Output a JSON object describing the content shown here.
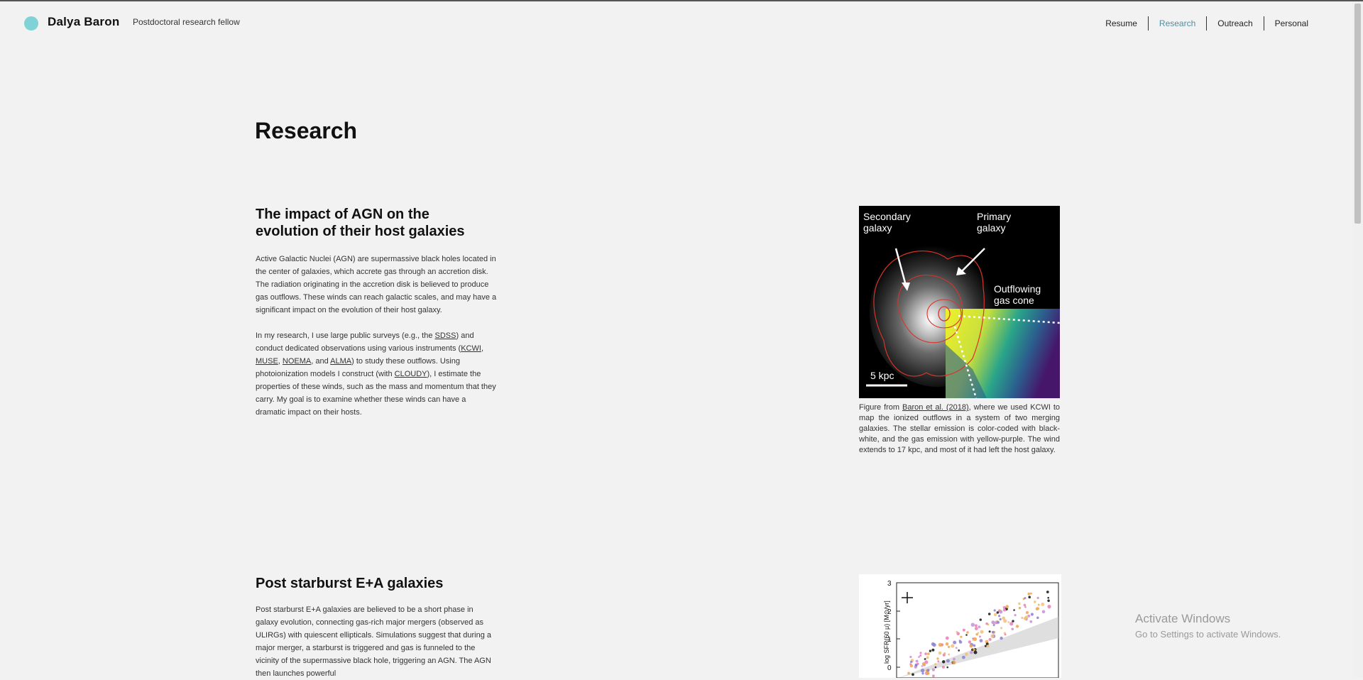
{
  "header": {
    "site_name": "Dalya Baron",
    "tagline": "Postdoctoral research fellow",
    "nav": [
      "Resume",
      "Research",
      "Outreach",
      "Personal"
    ]
  },
  "page": {
    "title": "Research"
  },
  "section1": {
    "title_line1": "The impact of AGN on the",
    "title_line2": "evolution of their host galaxies",
    "p1": "Active Galactic Nuclei (AGN) are supermassive black holes located in the center of galaxies, which accrete gas through an accretion disk. The radiation originating in the accretion disk is believed to produce gas outflows. These winds can reach galactic scales, and may have a significant impact on the evolution of their host galaxy.",
    "p2_a": "In my research, I use large public surveys (e.g., the ",
    "link_sdss": "SDSS",
    "p2_b": ") and conduct dedicated observations using various instruments (",
    "link_kcwi": "KCWI",
    "sep1": ", ",
    "link_muse": "MUSE",
    "sep2": ", ",
    "link_noema": "NOEMA",
    "sep3": ", and ",
    "link_alma": "ALMA",
    "p2_c": ") to study these outflows. Using photoionization models I construct (with ",
    "link_cloudy": "CLOUDY",
    "p2_d": "), I estimate the properties of these winds, such as the mass and momentum that they carry. My goal is to examine whether these winds can have a dramatic impact on their hosts.",
    "figure": {
      "label_secondary_1": "Secondary",
      "label_secondary_2": "galaxy",
      "label_primary_1": "Primary",
      "label_primary_2": "galaxy",
      "label_outflow_1": "Outflowing",
      "label_outflow_2": "gas cone",
      "scale": "5 kpc"
    },
    "caption_a": "Figure from ",
    "caption_link": "Baron et al. (2018)",
    "caption_b": ", where we used KCWI to map the ionized outflows in a system of two merging galaxies. The stellar emission is color-coded with black-white, and the gas emission with yellow-purple. The wind extends to 17 kpc, and most of it had left the host galaxy."
  },
  "section2": {
    "title": "Post starburst E+A galaxies",
    "p1": "Post starburst E+A galaxies are believed to be a short phase in galaxy evolution, connecting gas-rich major mergers (observed as ULIRGs) with quiescent ellipticals. Simulations suggest that during a major merger, a starburst is triggered and gas is funneled to the vicinity of the supermassive black hole, triggering an AGN. The AGN then launches powerful",
    "plot": {
      "ylabel": "log SFR(60 μ) [M⊙/yr]",
      "yticks": [
        "3",
        "2",
        "1",
        "0"
      ]
    }
  },
  "watermark": {
    "title": "Activate Windows",
    "subtitle": "Go to Settings to activate Windows."
  }
}
